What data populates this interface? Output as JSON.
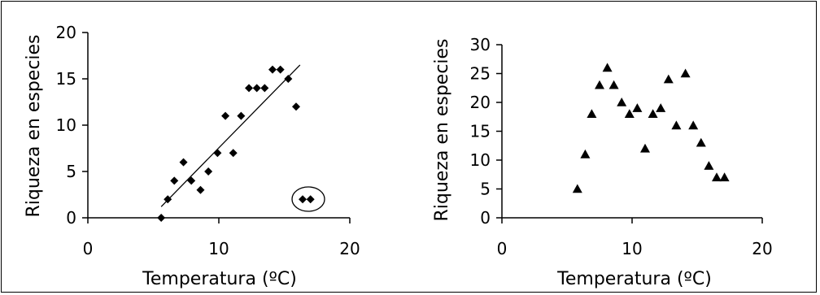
{
  "chart_data": [
    {
      "type": "scatter",
      "xlabel": "Temperatura (ºC)",
      "ylabel": "Riqueza en especies",
      "xlim": [
        0,
        20
      ],
      "ylim": [
        0,
        20
      ],
      "xticks": [
        "0",
        "10",
        "20"
      ],
      "yticks": [
        "0",
        "5",
        "10",
        "15",
        "20"
      ],
      "marker": "diamond",
      "points": [
        [
          5.6,
          0
        ],
        [
          6.1,
          2
        ],
        [
          6.6,
          4
        ],
        [
          7.3,
          6
        ],
        [
          7.9,
          4
        ],
        [
          8.6,
          3
        ],
        [
          9.2,
          5
        ],
        [
          9.9,
          7
        ],
        [
          10.5,
          11
        ],
        [
          11.1,
          7
        ],
        [
          11.7,
          11
        ],
        [
          12.3,
          14
        ],
        [
          12.9,
          14
        ],
        [
          13.5,
          14
        ],
        [
          14.1,
          16
        ],
        [
          14.7,
          16
        ],
        [
          15.3,
          15
        ],
        [
          15.9,
          12
        ],
        [
          16.4,
          2
        ],
        [
          17.0,
          2
        ]
      ],
      "trendline": [
        [
          5.6,
          1.2
        ],
        [
          16.2,
          16.5
        ]
      ],
      "circled_points": [
        [
          16.4,
          2
        ],
        [
          17.0,
          2
        ]
      ]
    },
    {
      "type": "scatter",
      "xlabel": "Temperatura (ºC)",
      "ylabel": "Riqueza en especies",
      "xlim": [
        0,
        20
      ],
      "ylim": [
        0,
        30
      ],
      "xticks": [
        "0",
        "10",
        "20"
      ],
      "yticks": [
        "0",
        "5",
        "10",
        "15",
        "20",
        "25",
        "30"
      ],
      "marker": "triangle",
      "points": [
        [
          5.8,
          5
        ],
        [
          6.4,
          11
        ],
        [
          6.9,
          18
        ],
        [
          7.5,
          23
        ],
        [
          8.1,
          26
        ],
        [
          8.6,
          23
        ],
        [
          9.2,
          20
        ],
        [
          9.8,
          18
        ],
        [
          10.4,
          19
        ],
        [
          11.0,
          12
        ],
        [
          11.6,
          18
        ],
        [
          12.2,
          19
        ],
        [
          12.8,
          24
        ],
        [
          13.4,
          16
        ],
        [
          14.1,
          25
        ],
        [
          14.7,
          16
        ],
        [
          15.3,
          13
        ],
        [
          15.9,
          9
        ],
        [
          16.5,
          7
        ],
        [
          17.1,
          7
        ]
      ]
    }
  ]
}
